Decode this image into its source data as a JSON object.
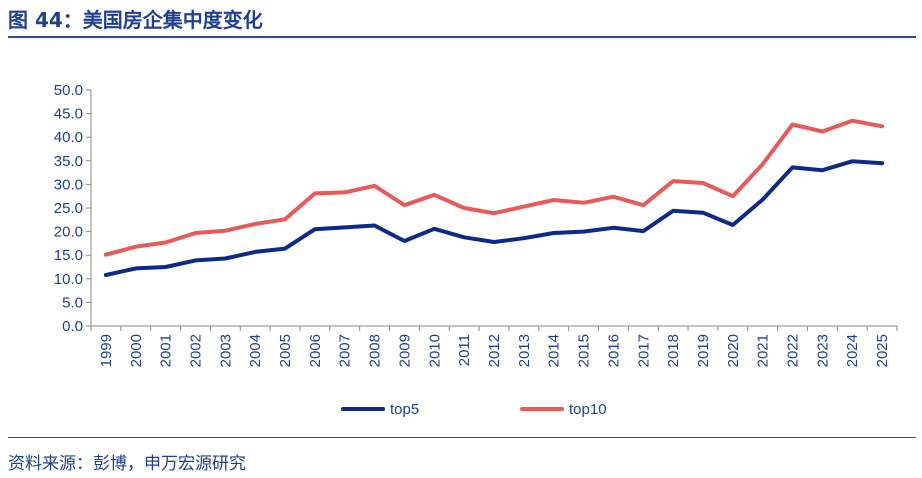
{
  "title": "图 44：美国房企集中度变化",
  "source": "资料来源：彭博，申万宏源研究",
  "chart_data": {
    "type": "line",
    "title": "",
    "xlabel": "",
    "ylabel": "",
    "categories": [
      "1999",
      "2000",
      "2001",
      "2002",
      "2003",
      "2004",
      "2005",
      "2006",
      "2007",
      "2008",
      "2009",
      "2010",
      "2011",
      "2012",
      "2013",
      "2014",
      "2015",
      "2016",
      "2017",
      "2018",
      "2019",
      "2020",
      "2021",
      "2022",
      "2023",
      "2024",
      "2025"
    ],
    "ylim": [
      0,
      50
    ],
    "yticks": [
      "0.0",
      "5.0",
      "10.0",
      "15.0",
      "20.0",
      "25.0",
      "30.0",
      "35.0",
      "40.0",
      "45.0",
      "50.0"
    ],
    "grid": false,
    "legend_position": "bottom",
    "series": [
      {
        "name": "top5",
        "color": "#0d2a8a",
        "values": [
          10.8,
          12.2,
          12.5,
          13.9,
          14.3,
          15.7,
          16.4,
          20.5,
          20.9,
          21.3,
          18.0,
          20.6,
          18.8,
          17.8,
          18.6,
          19.7,
          20.0,
          20.8,
          20.1,
          24.4,
          24.0,
          21.4,
          26.8,
          33.6,
          33.0,
          34.9,
          34.5
        ]
      },
      {
        "name": "top10",
        "color": "#e8595a",
        "values": [
          15.1,
          16.8,
          17.7,
          19.7,
          20.2,
          21.6,
          22.6,
          28.1,
          28.3,
          29.7,
          25.6,
          27.8,
          25.0,
          23.9,
          25.3,
          26.7,
          26.1,
          27.4,
          25.6,
          30.7,
          30.3,
          27.5,
          34.3,
          42.7,
          41.2,
          43.5,
          42.3
        ]
      }
    ]
  }
}
